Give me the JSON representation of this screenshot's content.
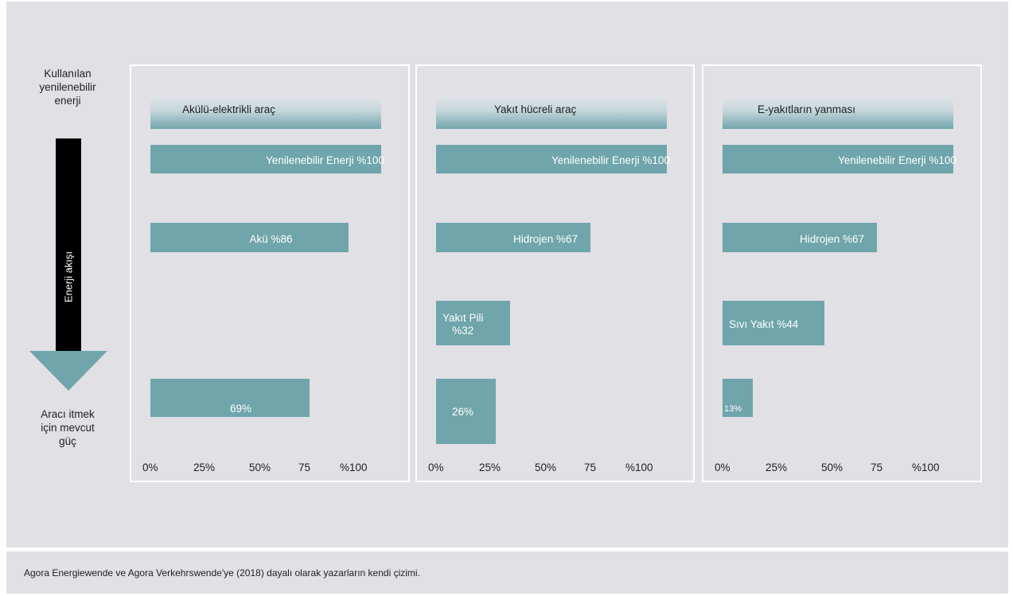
{
  "side": {
    "top_label": [
      "Kullanılan",
      "yenilenebilir",
      "enerji"
    ],
    "flow_label": "Enerji akışı",
    "bottom_label": [
      "Aracı itmek",
      "için mevcut",
      "güç"
    ]
  },
  "axis_ticks": [
    "0%",
    "25%",
    "50%",
    "75",
    "%100"
  ],
  "footer": "Agora Energiewende ve Agora Verkehrswende'ye (2018) dayalı olarak yazarların kendi çizimi.",
  "colors": {
    "bar": "#6fa5ab",
    "background": "#e1e0e4",
    "arrow_shaft": "#000000"
  },
  "chart_data": [
    {
      "type": "bar",
      "orientation": "horizontal",
      "title": "Akülü-elektrikli araç",
      "xlim": [
        0,
        100
      ],
      "bars": [
        {
          "stage": 1,
          "value": 100,
          "label": "Yenilenebilir Enerji %100"
        },
        {
          "stage": 2,
          "value": 86,
          "label": "Akü %86"
        },
        {
          "stage": 4,
          "value": 69,
          "label": "69%"
        }
      ]
    },
    {
      "type": "bar",
      "orientation": "horizontal",
      "title": "Yakıt hücreli araç",
      "xlim": [
        0,
        100
      ],
      "bars": [
        {
          "stage": 1,
          "value": 100,
          "label": "Yenilenebilir Enerji %100"
        },
        {
          "stage": 2,
          "value": 67,
          "label": "Hidrojen %67"
        },
        {
          "stage": 3,
          "value": 32,
          "label": "Yakıt Pili\n%32"
        },
        {
          "stage": 4,
          "value": 26,
          "label": "26%"
        }
      ]
    },
    {
      "type": "bar",
      "orientation": "horizontal",
      "title": "E-yakıtların yanması",
      "xlim": [
        0,
        100
      ],
      "bars": [
        {
          "stage": 1,
          "value": 100,
          "label": "Yenilenebilir Enerji %100"
        },
        {
          "stage": 2,
          "value": 67,
          "label": "Hidrojen %67"
        },
        {
          "stage": 3,
          "value": 44,
          "label": "Sıvı Yakıt %44"
        },
        {
          "stage": 4,
          "value": 13,
          "label": "13%"
        }
      ]
    }
  ]
}
